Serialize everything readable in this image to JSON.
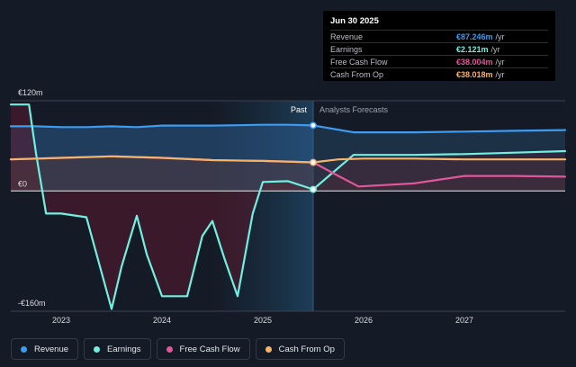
{
  "tooltip": {
    "date": "Jun 30 2025",
    "rows": [
      {
        "label": "Revenue",
        "value": "€87.246m",
        "unit": "/yr",
        "color": "#3d9bf0"
      },
      {
        "label": "Earnings",
        "value": "€2.121m",
        "unit": "/yr",
        "color": "#6ff0e0"
      },
      {
        "label": "Free Cash Flow",
        "value": "€38.004m",
        "unit": "/yr",
        "color": "#e0569a"
      },
      {
        "label": "Cash From Op",
        "value": "€38.018m",
        "unit": "/yr",
        "color": "#f5b46a"
      }
    ]
  },
  "legend": [
    {
      "label": "Revenue",
      "color": "#3d9bf0"
    },
    {
      "label": "Earnings",
      "color": "#6ff0e0"
    },
    {
      "label": "Free Cash Flow",
      "color": "#e0569a"
    },
    {
      "label": "Cash From Op",
      "color": "#f5b46a"
    }
  ],
  "chart_data": {
    "type": "line",
    "y_tick_labels": [
      "€120m",
      "€0",
      "-€160m"
    ],
    "y_tick_values": [
      120,
      0,
      -160
    ],
    "ylim": [
      -160,
      120
    ],
    "xlim": [
      2022.5,
      2028.0
    ],
    "x_ticks": [
      2023,
      2024,
      2025,
      2026,
      2027
    ],
    "x_tick_labels": [
      "2023",
      "2024",
      "2025",
      "2026",
      "2027"
    ],
    "past_label": "Past",
    "forecast_label": "Analysts Forecasts",
    "past_end": 2025.5,
    "grid": false,
    "legend_position": "bottom-left",
    "series": [
      {
        "name": "Revenue",
        "color": "#3d9bf0",
        "x": [
          2022.5,
          2022.75,
          2023.0,
          2023.25,
          2023.5,
          2023.75,
          2024.0,
          2024.25,
          2024.5,
          2024.75,
          2025.0,
          2025.25,
          2025.5
        ],
        "y": [
          86,
          86,
          85,
          85,
          86,
          85,
          87,
          87,
          87,
          87.5,
          88,
          88,
          87.2
        ]
      },
      {
        "name": "Earnings",
        "color": "#6ff0e0",
        "x": [
          2022.5,
          2022.68,
          2022.75,
          2022.85,
          2023.0,
          2023.25,
          2023.5,
          2023.6,
          2023.75,
          2023.85,
          2024.0,
          2024.25,
          2024.4,
          2024.5,
          2024.62,
          2024.75,
          2024.9,
          2025.0,
          2025.25,
          2025.5
        ],
        "y": [
          115,
          115,
          50,
          -30,
          -30,
          -35,
          -157,
          -100,
          -33,
          -85,
          -140,
          -140,
          -60,
          -40,
          -90,
          -140,
          -30,
          12,
          13,
          2.1
        ]
      },
      {
        "name": "Free Cash Flow",
        "color": "#e0569a",
        "x": [
          2022.5,
          2023.0,
          2023.5,
          2024.0,
          2024.5,
          2025.0,
          2025.5
        ],
        "y": [
          42,
          44,
          46,
          44,
          41,
          40,
          38
        ]
      },
      {
        "name": "Cash From Op",
        "color": "#f5b46a",
        "x": [
          2022.5,
          2023.0,
          2023.5,
          2024.0,
          2024.5,
          2025.0,
          2025.5
        ],
        "y": [
          42,
          44,
          46,
          44,
          41,
          40,
          38
        ]
      },
      {
        "name": "Revenue",
        "forecast": true,
        "color": "#3d9bf0",
        "x": [
          2025.5,
          2025.9,
          2026.5,
          2027.0,
          2027.5,
          2028.0
        ],
        "y": [
          87.2,
          78,
          78,
          79,
          80,
          81
        ]
      },
      {
        "name": "Earnings",
        "forecast": true,
        "color": "#6ff0e0",
        "x": [
          2025.5,
          2025.9,
          2026.5,
          2027.0,
          2027.5,
          2028.0
        ],
        "y": [
          2.1,
          48,
          48,
          49,
          51,
          53
        ]
      },
      {
        "name": "Free Cash Flow",
        "forecast": true,
        "color": "#e0569a",
        "x": [
          2025.5,
          2025.75,
          2025.95,
          2026.5,
          2027.0,
          2027.5,
          2028.0
        ],
        "y": [
          38,
          20,
          6,
          10,
          20,
          20,
          19
        ]
      },
      {
        "name": "Cash From Op",
        "forecast": true,
        "color": "#f5b46a",
        "x": [
          2025.5,
          2025.75,
          2026.0,
          2026.5,
          2027.0,
          2027.5,
          2028.0
        ],
        "y": [
          38,
          42,
          43,
          43,
          42,
          42,
          42
        ]
      }
    ]
  }
}
